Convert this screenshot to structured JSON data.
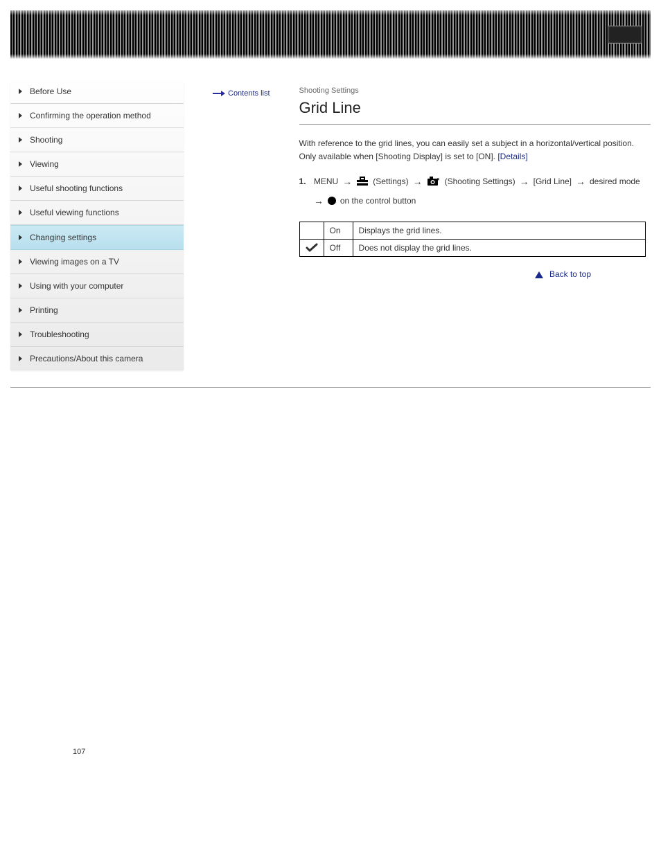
{
  "sidebar": {
    "items": [
      {
        "label": "Before Use"
      },
      {
        "label": "Confirming the operation method"
      },
      {
        "label": "Shooting"
      },
      {
        "label": "Viewing"
      },
      {
        "label": "Useful shooting functions"
      },
      {
        "label": "Useful viewing functions"
      },
      {
        "label": "Changing settings"
      },
      {
        "label": "Viewing images on a TV"
      },
      {
        "label": "Using with your computer"
      },
      {
        "label": "Printing"
      },
      {
        "label": "Troubleshooting"
      },
      {
        "label": "Precautions/About this camera"
      }
    ],
    "activeIndex": 6,
    "bottomLink": "Contents list"
  },
  "header": {
    "category": "Shooting Settings",
    "title": "Grid Line"
  },
  "content": {
    "description_prefix": "With reference to the grid lines, you can easily set a subject in a horizontal/vertical position. Only available when [Shooting Display] is set to [ON]. ",
    "description_link": "[Details]",
    "step_num": "1.",
    "step_parts": {
      "menu": "MENU",
      "settings": "(Settings)",
      "shooting_settings": "(Shooting Settings)",
      "grid_line": "[Grid Line]",
      "desired_mode": "desired mode",
      "on_control": "on the control button"
    }
  },
  "options": {
    "rows": [
      {
        "icon": false,
        "label": "On",
        "desc": "Displays the grid lines."
      },
      {
        "icon": true,
        "label": "Off",
        "desc": "Does not display the grid lines."
      }
    ]
  },
  "back": {
    "label": "Back to top"
  },
  "pageNumber": "107"
}
